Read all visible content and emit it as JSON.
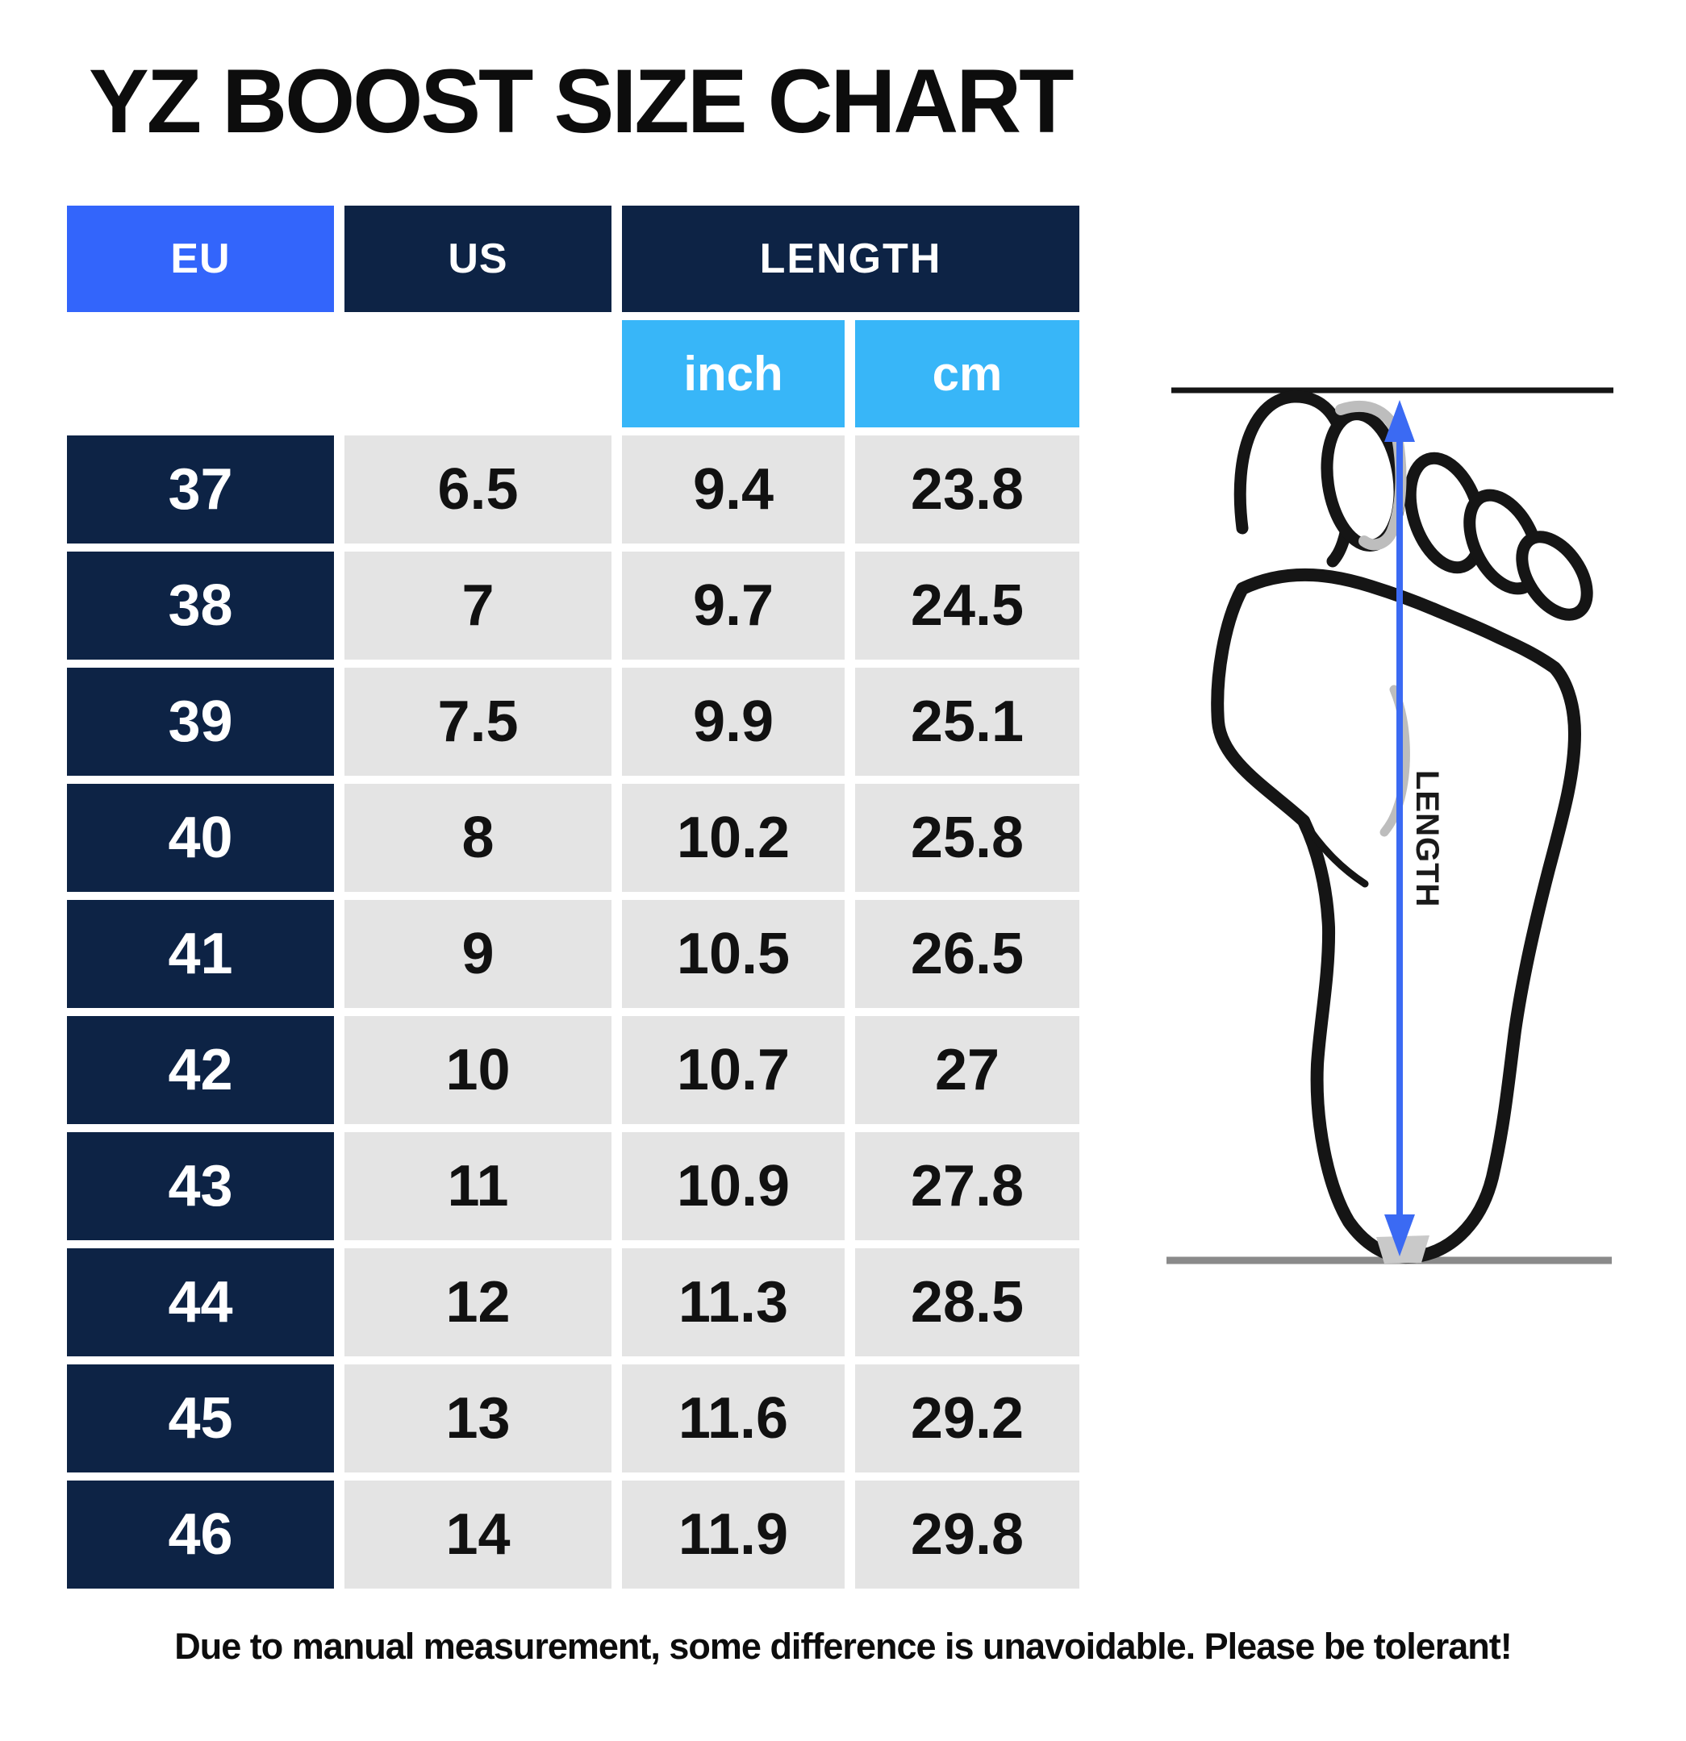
{
  "title": "YZ BOOST SIZE CHART",
  "table": {
    "headers": {
      "eu": "EU",
      "us": "US",
      "length": "LENGTH",
      "inch": "inch",
      "cm": "cm"
    },
    "rows": [
      {
        "eu": "37",
        "us": "6.5",
        "inch": "9.4",
        "cm": "23.8"
      },
      {
        "eu": "38",
        "us": "7",
        "inch": "9.7",
        "cm": "24.5"
      },
      {
        "eu": "39",
        "us": "7.5",
        "inch": "9.9",
        "cm": "25.1"
      },
      {
        "eu": "40",
        "us": "8",
        "inch": "10.2",
        "cm": "25.8"
      },
      {
        "eu": "41",
        "us": "9",
        "inch": "10.5",
        "cm": "26.5"
      },
      {
        "eu": "42",
        "us": "10",
        "inch": "10.7",
        "cm": "27"
      },
      {
        "eu": "43",
        "us": "11",
        "inch": "10.9",
        "cm": "27.8"
      },
      {
        "eu": "44",
        "us": "12",
        "inch": "11.3",
        "cm": "28.5"
      },
      {
        "eu": "45",
        "us": "13",
        "inch": "11.6",
        "cm": "29.2"
      },
      {
        "eu": "46",
        "us": "14",
        "inch": "11.9",
        "cm": "29.8"
      }
    ]
  },
  "chart_data": {
    "type": "table",
    "title": "YZ BOOST SIZE CHART",
    "columns": [
      "EU",
      "US",
      "LENGTH (inch)",
      "LENGTH (cm)"
    ],
    "rows": [
      [
        37,
        6.5,
        9.4,
        23.8
      ],
      [
        38,
        7,
        9.7,
        24.5
      ],
      [
        39,
        7.5,
        9.9,
        25.1
      ],
      [
        40,
        8,
        10.2,
        25.8
      ],
      [
        41,
        9,
        10.5,
        26.5
      ],
      [
        42,
        10,
        10.7,
        27
      ],
      [
        43,
        11,
        10.9,
        27.8
      ],
      [
        44,
        12,
        11.3,
        28.5
      ],
      [
        45,
        13,
        11.6,
        29.2
      ],
      [
        46,
        14,
        11.9,
        29.8
      ]
    ]
  },
  "diagram": {
    "length_label": "LENGTH"
  },
  "footnote": "Due to manual measurement, some difference is unavoidable. Please be tolerant!",
  "colors": {
    "accent_blue": "#3365fb",
    "navy": "#0d2345",
    "light_blue": "#38b6f8",
    "cell_gray": "#e4e4e4",
    "text_dark": "#111111",
    "arrow_blue": "#3b6af3",
    "line_gray": "#8a8a8a",
    "detail_gray": "#bdbdbd"
  }
}
